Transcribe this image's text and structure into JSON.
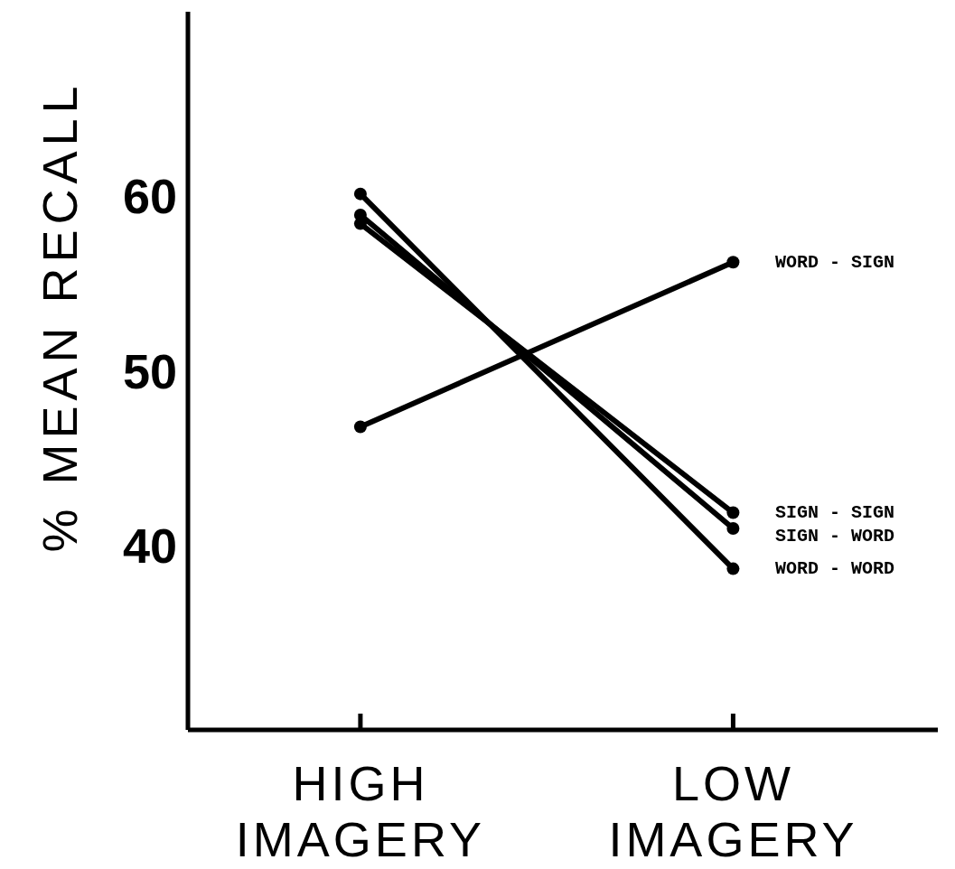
{
  "chart_data": {
    "type": "line",
    "ylabel": "% MEAN RECALL",
    "categories": [
      "HIGH IMAGERY",
      "LOW IMAGERY"
    ],
    "ylim": [
      29.5,
      70.5
    ],
    "yticks": [
      40,
      50,
      60
    ],
    "marker": "circle",
    "line_style": "solid",
    "series": [
      {
        "name": "WORD - SIGN",
        "color": "#000000",
        "values": [
          46.8,
          56.2
        ]
      },
      {
        "name": "SIGN - SIGN",
        "color": "#000000",
        "values": [
          58.4,
          41.9
        ]
      },
      {
        "name": "SIGN - WORD",
        "color": "#000000",
        "values": [
          58.9,
          41.0
        ]
      },
      {
        "name": "WORD - WORD",
        "color": "#000000",
        "values": [
          60.1,
          38.7
        ]
      }
    ]
  }
}
